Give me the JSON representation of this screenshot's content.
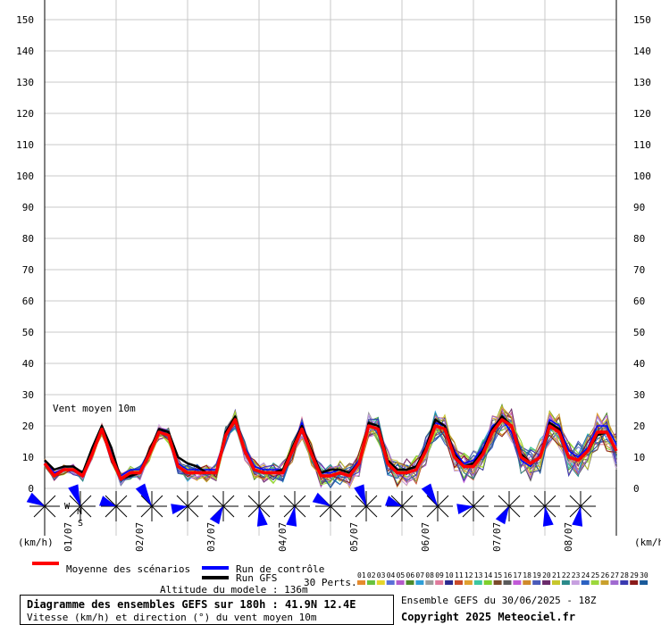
{
  "chart_data": {
    "type": "line",
    "y_ticks": [
      0,
      10,
      20,
      30,
      40,
      50,
      60,
      70,
      80,
      90,
      100,
      110,
      120,
      130,
      140,
      150
    ],
    "ylim": [
      0,
      150
    ],
    "x_labels": [
      "01/07",
      "02/07",
      "03/07",
      "04/07",
      "05/07",
      "06/07",
      "07/07",
      "08/07"
    ],
    "unit_left": "(km/h)",
    "unit_right": "(km/h)",
    "annotation": "Vent moyen 10m",
    "compass": {
      "n": "N",
      "w": "W",
      "s": "S"
    },
    "x_step_hours": 3,
    "series": [
      {
        "name": "Moyenne des scénarios",
        "values": [
          8,
          4,
          6,
          6,
          4,
          11,
          19,
          10,
          3,
          5,
          5,
          11,
          18,
          17,
          7,
          5,
          5,
          5,
          5,
          17,
          22,
          12,
          6,
          5,
          5,
          5,
          12,
          19,
          11,
          4,
          4,
          5,
          4,
          8,
          20,
          19,
          8,
          5,
          5,
          6,
          12,
          20,
          19,
          10,
          7,
          7,
          11,
          18,
          22,
          20,
          10,
          8,
          10,
          20,
          18,
          10,
          9,
          12,
          18,
          18,
          12
        ]
      },
      {
        "name": "Run de contrôle",
        "values": [
          9,
          5,
          6,
          6,
          5,
          12,
          20,
          11,
          4,
          6,
          6,
          12,
          19,
          17,
          8,
          6,
          6,
          6,
          6,
          18,
          23,
          13,
          7,
          6,
          6,
          6,
          13,
          21,
          12,
          5,
          5,
          6,
          5,
          9,
          21,
          20,
          9,
          6,
          6,
          7,
          13,
          21,
          20,
          12,
          8,
          9,
          13,
          20,
          22,
          18,
          9,
          7,
          11,
          22,
          20,
          12,
          10,
          13,
          20,
          20,
          14
        ]
      },
      {
        "name": "Run GFS",
        "values": [
          9,
          6,
          7,
          7,
          5,
          13,
          20,
          13,
          3,
          4,
          5,
          12,
          19,
          18,
          10,
          8,
          7,
          5,
          5,
          18,
          23,
          12,
          6,
          5,
          5,
          6,
          13,
          20,
          12,
          5,
          6,
          6,
          5,
          8,
          21,
          20,
          9,
          6,
          6,
          7,
          13,
          22,
          20,
          11,
          7,
          8,
          12,
          19,
          23,
          20,
          11,
          8,
          10,
          21,
          19,
          10,
          9,
          12,
          17,
          18,
          12
        ]
      }
    ]
  },
  "legend": {
    "mean": "Moyenne des scénarios",
    "control": "Run de contrôle",
    "gfs": "Run GFS",
    "perts": "30 Perts.",
    "pert_numbers": [
      "01",
      "02",
      "03",
      "04",
      "05",
      "06",
      "07",
      "08",
      "09",
      "10",
      "11",
      "12",
      "13",
      "14",
      "15",
      "16",
      "17",
      "18",
      "19",
      "20",
      "21",
      "22",
      "23",
      "24",
      "25",
      "26",
      "27",
      "28",
      "29",
      "30"
    ],
    "pert_colors": [
      "#e58b2e",
      "#68c23e",
      "#e5d52c",
      "#5a6fd8",
      "#b45ac9",
      "#4d8a2a",
      "#2f9fd8",
      "#9c9c9c",
      "#e07a9c",
      "#2b2b8f",
      "#c94b2b",
      "#e0a030",
      "#3cc7a0",
      "#7fd02c",
      "#7a4a2a",
      "#5a5a5a",
      "#c25ad8",
      "#d08a2c",
      "#4a5ab8",
      "#6a2a6a",
      "#c7c72c",
      "#2a8a8a",
      "#c7a0e0",
      "#2c62c2",
      "#9cd83c",
      "#c9a02c",
      "#a06ad0",
      "#3a3ab0",
      "#8a1a1a",
      "#1a5a9a"
    ]
  },
  "meta": {
    "altitude": "Altitude du modele : 136m",
    "ensemble": "Ensemble GEFS du 30/06/2025 - 18Z",
    "copyright": "Copyright 2025 Meteociel.fr",
    "title": "Diagramme des ensembles GEFS sur 180h : 41.9N 12.4E",
    "subtitle": "Vitesse (km/h) et direction (°) du vent moyen 10m"
  },
  "colors": {
    "mean": "#ff0000",
    "control": "#0000ff",
    "gfs": "#000000",
    "grid": "#c8c8c8",
    "wind": "#0000ff"
  }
}
